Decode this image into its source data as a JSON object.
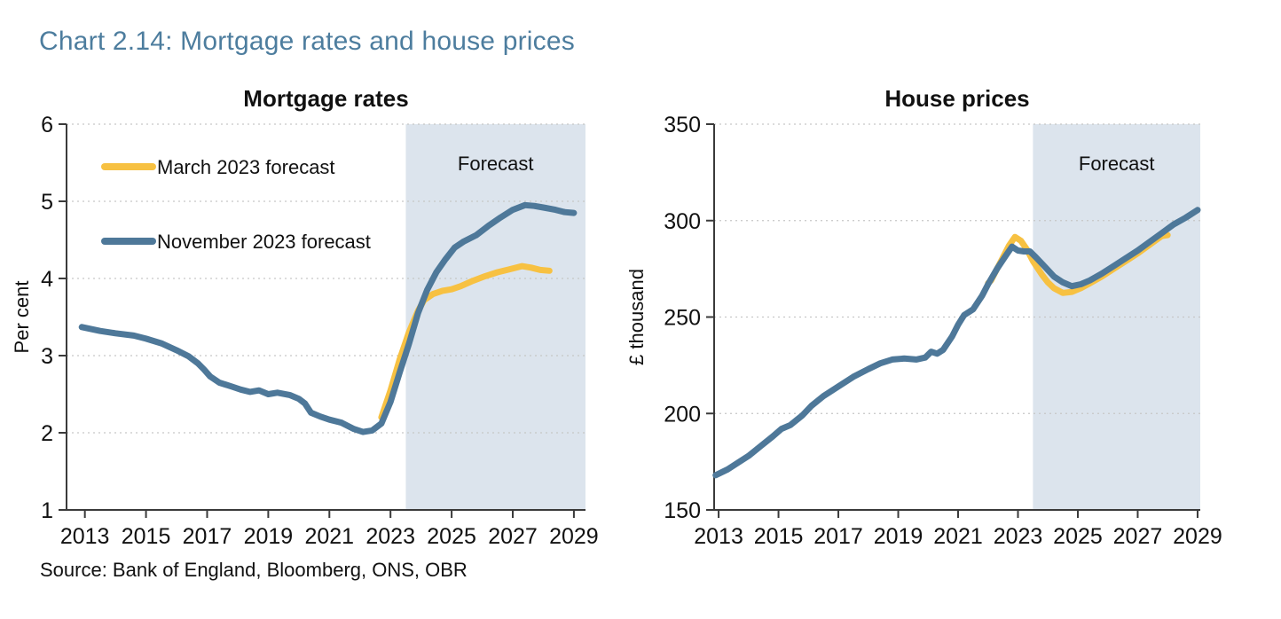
{
  "heading": "Chart 2.14: Mortgage rates and house prices",
  "source": "Source: Bank of England, Bloomberg, ONS, OBR",
  "colors": {
    "heading": "#4D7D9E",
    "march_line": "#F7C142",
    "november_line": "#4E7899",
    "forecast_band": "#DCE4ED",
    "gridline": "#C6C6C6",
    "axis": "#3A3A3A",
    "text": "#111111"
  },
  "chart_data": [
    {
      "id": "mortgage-rates",
      "type": "line",
      "title": "Mortgage rates",
      "ylabel": "Per cent",
      "ylim": [
        1,
        6
      ],
      "yticks": [
        1,
        2,
        3,
        4,
        5,
        6
      ],
      "xlim": [
        2012.4,
        2029.38
      ],
      "xticks": [
        2013,
        2015,
        2017,
        2019,
        2021,
        2023,
        2025,
        2027,
        2029
      ],
      "forecast_start": 2023.5,
      "forecast_label": "Forecast",
      "grid": true,
      "legend": true,
      "legend_position": "top-left-inside",
      "series": [
        {
          "name": "March 2023 forecast",
          "color": "#F7C142",
          "points": [
            [
              2022.7,
              2.2
            ],
            [
              2023.0,
              2.55
            ],
            [
              2023.3,
              2.95
            ],
            [
              2023.6,
              3.3
            ],
            [
              2023.9,
              3.58
            ],
            [
              2024.1,
              3.72
            ],
            [
              2024.4,
              3.8
            ],
            [
              2024.7,
              3.84
            ],
            [
              2025.0,
              3.86
            ],
            [
              2025.3,
              3.9
            ],
            [
              2025.7,
              3.97
            ],
            [
              2026.1,
              4.03
            ],
            [
              2026.5,
              4.08
            ],
            [
              2026.9,
              4.12
            ],
            [
              2027.3,
              4.16
            ],
            [
              2027.6,
              4.14
            ],
            [
              2027.9,
              4.11
            ],
            [
              2028.2,
              4.1
            ]
          ]
        },
        {
          "name": "November 2023 forecast",
          "color": "#4E7899",
          "points": [
            [
              2012.9,
              3.37
            ],
            [
              2013.5,
              3.32
            ],
            [
              2014.0,
              3.29
            ],
            [
              2014.6,
              3.26
            ],
            [
              2015.0,
              3.22
            ],
            [
              2015.5,
              3.16
            ],
            [
              2016.0,
              3.07
            ],
            [
              2016.4,
              2.99
            ],
            [
              2016.7,
              2.9
            ],
            [
              2016.9,
              2.82
            ],
            [
              2017.1,
              2.73
            ],
            [
              2017.4,
              2.65
            ],
            [
              2017.8,
              2.6
            ],
            [
              2018.1,
              2.56
            ],
            [
              2018.4,
              2.53
            ],
            [
              2018.7,
              2.55
            ],
            [
              2019.0,
              2.5
            ],
            [
              2019.3,
              2.52
            ],
            [
              2019.7,
              2.49
            ],
            [
              2020.0,
              2.44
            ],
            [
              2020.2,
              2.38
            ],
            [
              2020.4,
              2.26
            ],
            [
              2020.7,
              2.21
            ],
            [
              2021.0,
              2.17
            ],
            [
              2021.4,
              2.13
            ],
            [
              2021.8,
              2.05
            ],
            [
              2022.1,
              2.01
            ],
            [
              2022.4,
              2.03
            ],
            [
              2022.7,
              2.12
            ],
            [
              2023.0,
              2.4
            ],
            [
              2023.3,
              2.78
            ],
            [
              2023.6,
              3.15
            ],
            [
              2023.9,
              3.55
            ],
            [
              2024.2,
              3.85
            ],
            [
              2024.5,
              4.08
            ],
            [
              2024.8,
              4.25
            ],
            [
              2025.1,
              4.4
            ],
            [
              2025.4,
              4.48
            ],
            [
              2025.8,
              4.56
            ],
            [
              2026.2,
              4.68
            ],
            [
              2026.6,
              4.79
            ],
            [
              2027.0,
              4.89
            ],
            [
              2027.4,
              4.95
            ],
            [
              2027.7,
              4.94
            ],
            [
              2028.0,
              4.92
            ],
            [
              2028.4,
              4.89
            ],
            [
              2028.7,
              4.86
            ],
            [
              2029.0,
              4.85
            ]
          ]
        }
      ]
    },
    {
      "id": "house-prices",
      "type": "line",
      "title": "House prices",
      "ylabel": "£ thousand",
      "ylim": [
        150,
        350
      ],
      "yticks": [
        150,
        200,
        250,
        300,
        350
      ],
      "xlim": [
        2012.85,
        2029.09
      ],
      "xticks": [
        2013,
        2015,
        2017,
        2019,
        2021,
        2023,
        2025,
        2027,
        2029
      ],
      "forecast_start": 2023.5,
      "forecast_label": "Forecast",
      "grid": true,
      "legend": false,
      "series": [
        {
          "name": "March 2023 forecast",
          "color": "#F7C142",
          "points": [
            [
              2022.0,
              267.5
            ],
            [
              2022.1,
              269
            ],
            [
              2022.4,
              278
            ],
            [
              2022.7,
              287
            ],
            [
              2022.9,
              291.5
            ],
            [
              2023.1,
              289.5
            ],
            [
              2023.3,
              285
            ],
            [
              2023.5,
              279
            ],
            [
              2023.8,
              272
            ],
            [
              2024.0,
              268
            ],
            [
              2024.2,
              265
            ],
            [
              2024.5,
              262.5
            ],
            [
              2024.8,
              263
            ],
            [
              2025.1,
              265
            ],
            [
              2025.4,
              267.5
            ],
            [
              2025.8,
              271
            ],
            [
              2026.2,
              275
            ],
            [
              2026.6,
              279
            ],
            [
              2027.0,
              283
            ],
            [
              2027.4,
              287.5
            ],
            [
              2027.8,
              292
            ],
            [
              2028.0,
              292.5
            ]
          ]
        },
        {
          "name": "November 2023 forecast",
          "color": "#4E7899",
          "points": [
            [
              2012.9,
              168
            ],
            [
              2013.3,
              171
            ],
            [
              2013.7,
              175
            ],
            [
              2014.0,
              178
            ],
            [
              2014.4,
              183
            ],
            [
              2014.8,
              188
            ],
            [
              2015.1,
              192
            ],
            [
              2015.4,
              194
            ],
            [
              2015.8,
              199
            ],
            [
              2016.1,
              204
            ],
            [
              2016.5,
              209
            ],
            [
              2017.0,
              214
            ],
            [
              2017.5,
              219
            ],
            [
              2018.0,
              223
            ],
            [
              2018.4,
              226
            ],
            [
              2018.8,
              228
            ],
            [
              2019.2,
              228.5
            ],
            [
              2019.6,
              228
            ],
            [
              2019.9,
              229
            ],
            [
              2020.1,
              232
            ],
            [
              2020.3,
              231
            ],
            [
              2020.5,
              233
            ],
            [
              2020.8,
              240
            ],
            [
              2021.0,
              246
            ],
            [
              2021.2,
              251
            ],
            [
              2021.5,
              254
            ],
            [
              2021.8,
              261
            ],
            [
              2022.0,
              267
            ],
            [
              2022.3,
              275
            ],
            [
              2022.6,
              282
            ],
            [
              2022.8,
              286.5
            ],
            [
              2023.0,
              284.5
            ],
            [
              2023.2,
              284
            ],
            [
              2023.4,
              284
            ],
            [
              2023.6,
              281
            ],
            [
              2023.9,
              276
            ],
            [
              2024.2,
              271
            ],
            [
              2024.5,
              268
            ],
            [
              2024.8,
              266
            ],
            [
              2025.1,
              267
            ],
            [
              2025.4,
              269
            ],
            [
              2025.8,
              272.5
            ],
            [
              2026.2,
              276.5
            ],
            [
              2026.6,
              280.5
            ],
            [
              2027.0,
              284.5
            ],
            [
              2027.4,
              289
            ],
            [
              2027.8,
              293.5
            ],
            [
              2028.2,
              298
            ],
            [
              2028.6,
              301.5
            ],
            [
              2029.0,
              305.5
            ]
          ]
        }
      ]
    }
  ]
}
